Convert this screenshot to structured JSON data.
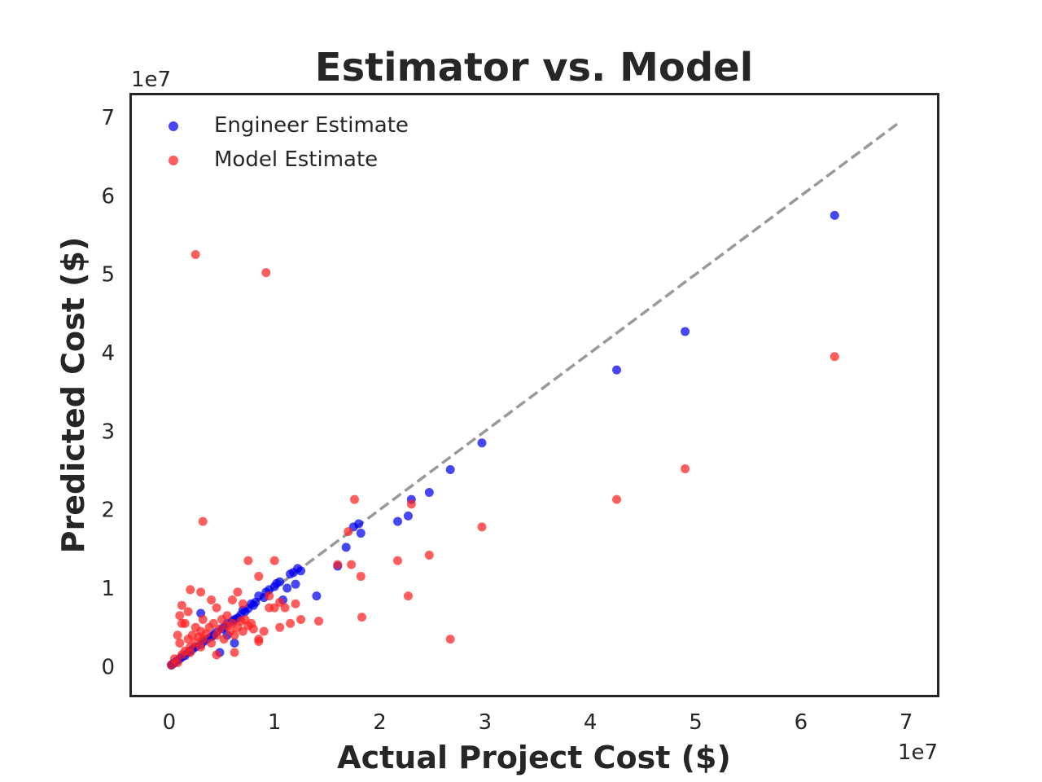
{
  "chart_data": {
    "type": "scatter",
    "title": "Estimator vs. Model",
    "xlabel": "Actual Project Cost ($)",
    "ylabel": "Predicted Cost ($)",
    "x_offset_label": "1e7",
    "y_offset_label": "1e7",
    "xlim": [
      -0.37,
      7.3
    ],
    "ylim": [
      -0.37,
      7.3
    ],
    "x_ticks": [
      0,
      1,
      2,
      3,
      4,
      5,
      6,
      7
    ],
    "y_ticks": [
      0,
      1,
      2,
      3,
      4,
      5,
      6,
      7
    ],
    "grid": false,
    "legend_position": "upper-left",
    "reference_line": {
      "x": [
        0,
        6.95
      ],
      "y": [
        0,
        6.95
      ],
      "color": "#999999",
      "style": "dashed"
    },
    "series": [
      {
        "name": "Engineer Estimate",
        "color": "#0000ee",
        "x": [
          0.02,
          0.03,
          0.05,
          0.08,
          0.1,
          0.12,
          0.15,
          0.18,
          0.2,
          0.22,
          0.25,
          0.3,
          0.33,
          0.36,
          0.4,
          0.42,
          0.45,
          0.5,
          0.52,
          0.55,
          0.6,
          0.62,
          0.65,
          0.68,
          0.7,
          0.72,
          0.75,
          0.78,
          0.8,
          0.82,
          0.85,
          0.9,
          0.92,
          0.95,
          1.0,
          1.02,
          1.05,
          1.08,
          1.12,
          1.15,
          1.18,
          1.2,
          1.22,
          1.25,
          1.4,
          1.6,
          1.68,
          1.75,
          1.8,
          1.82,
          2.17,
          2.27,
          2.3,
          2.47,
          2.67,
          2.97,
          4.25,
          4.9,
          6.32,
          0.3,
          0.48,
          0.55,
          0.62
        ],
        "y": [
          0.02,
          0.03,
          0.05,
          0.08,
          0.1,
          0.12,
          0.14,
          0.18,
          0.2,
          0.22,
          0.25,
          0.28,
          0.32,
          0.35,
          0.38,
          0.4,
          0.44,
          0.48,
          0.5,
          0.55,
          0.58,
          0.6,
          0.62,
          0.66,
          0.72,
          0.7,
          0.74,
          0.8,
          0.78,
          0.82,
          0.9,
          0.88,
          0.95,
          0.98,
          1.02,
          1.06,
          1.08,
          0.85,
          1.0,
          1.18,
          1.2,
          1.05,
          1.25,
          1.22,
          0.9,
          1.28,
          1.52,
          1.78,
          1.82,
          1.7,
          1.85,
          1.92,
          2.13,
          2.22,
          2.51,
          2.85,
          3.78,
          4.27,
          5.75,
          0.68,
          0.18,
          0.4,
          0.3
        ]
      },
      {
        "name": "Model Estimate",
        "color": "#ff2020",
        "x": [
          0.02,
          0.05,
          0.08,
          0.1,
          0.12,
          0.15,
          0.18,
          0.2,
          0.22,
          0.25,
          0.28,
          0.3,
          0.32,
          0.35,
          0.38,
          0.4,
          0.42,
          0.45,
          0.48,
          0.5,
          0.52,
          0.55,
          0.58,
          0.6,
          0.62,
          0.65,
          0.68,
          0.7,
          0.72,
          0.75,
          0.78,
          0.8,
          0.85,
          0.9,
          0.95,
          1.0,
          1.05,
          1.1,
          1.15,
          1.2,
          1.25,
          0.1,
          0.15,
          0.2,
          0.3,
          0.45,
          0.55,
          0.65,
          0.75,
          0.85,
          0.25,
          0.32,
          0.12,
          0.18,
          0.4,
          0.6,
          0.08,
          0.7,
          0.95,
          1.0,
          1.05,
          1.42,
          1.6,
          1.7,
          1.73,
          1.76,
          1.82,
          1.83,
          2.17,
          2.27,
          2.3,
          2.47,
          2.67,
          2.97,
          4.25,
          4.9,
          6.32,
          0.25,
          0.32,
          0.92,
          0.12,
          0.2,
          0.3,
          0.45,
          0.62,
          0.85
        ],
        "y": [
          0.02,
          0.1,
          0.05,
          0.3,
          0.15,
          0.2,
          0.35,
          0.25,
          0.4,
          0.3,
          0.38,
          0.45,
          0.35,
          0.42,
          0.5,
          0.3,
          0.55,
          0.4,
          0.48,
          0.6,
          0.35,
          0.52,
          0.45,
          0.55,
          0.4,
          0.5,
          0.58,
          0.45,
          0.6,
          0.52,
          0.55,
          0.48,
          0.35,
          0.45,
          0.9,
          0.75,
          0.5,
          0.75,
          0.55,
          0.8,
          0.6,
          0.65,
          0.55,
          0.98,
          0.95,
          0.75,
          0.65,
          0.95,
          1.35,
          1.15,
          0.5,
          0.6,
          0.55,
          0.7,
          0.85,
          0.85,
          0.4,
          0.8,
          0.75,
          1.35,
          0.82,
          0.58,
          1.3,
          1.72,
          1.3,
          2.13,
          1.15,
          0.63,
          1.35,
          0.9,
          2.07,
          1.42,
          0.35,
          1.78,
          2.13,
          2.52,
          3.95,
          5.25,
          1.85,
          5.02,
          0.78,
          0.18,
          0.25,
          0.15,
          0.18,
          0.32
        ]
      }
    ]
  }
}
